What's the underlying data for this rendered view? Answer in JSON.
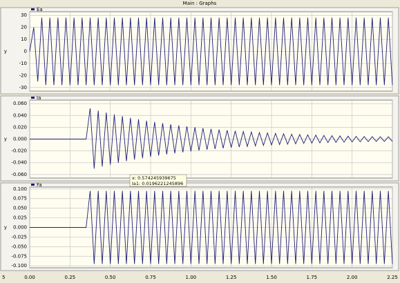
{
  "window_title": "Main : Graphs",
  "corner_label": "5",
  "tooltip": {
    "x_line": "x: 0.574245939675",
    "y_line": "Ia1: 0.0196221245896"
  },
  "chart_data": [
    {
      "type": "line",
      "ylabel": "y",
      "legend_position": "top-left",
      "grid": true,
      "xlim": [
        0,
        2.25
      ],
      "ylim": [
        -33,
        33
      ],
      "yticks": [
        30,
        20,
        10,
        0,
        -10,
        -20,
        -30
      ],
      "xticks": [
        0,
        0.25,
        0.5,
        0.75,
        1,
        1.25,
        1.5,
        1.75,
        2,
        2.25
      ],
      "x": [
        0,
        0.025,
        0.05,
        0.075,
        0.1,
        0.125,
        0.15,
        0.175,
        0.2,
        0.225,
        0.25,
        0.275,
        0.3,
        0.325,
        0.35,
        0.375,
        0.4,
        0.425,
        0.45,
        0.475,
        0.5,
        0.525,
        0.55,
        0.575,
        0.6,
        0.625,
        0.65,
        0.675,
        0.7,
        0.725,
        0.75,
        0.775,
        0.8,
        0.825,
        0.85,
        0.875,
        0.9,
        0.925,
        0.95,
        0.975,
        1,
        1.025,
        1.05,
        1.075,
        1.1,
        1.125,
        1.15,
        1.175,
        1.2,
        1.225,
        1.25,
        1.275,
        1.3,
        1.325,
        1.35,
        1.375,
        1.4,
        1.425,
        1.45,
        1.475,
        1.5,
        1.525,
        1.55,
        1.575,
        1.6,
        1.625,
        1.65,
        1.675,
        1.7,
        1.725,
        1.75,
        1.775,
        1.8,
        1.825,
        1.85,
        1.875,
        1.9,
        1.925,
        1.95,
        1.975,
        2,
        2.025,
        2.05,
        2.075,
        2.1,
        2.125,
        2.15,
        2.175,
        2.2,
        2.225,
        2.25
      ],
      "series": [
        {
          "name": "Ea",
          "color": "#1c1c78",
          "values": [
            0,
            20,
            -25,
            28,
            -28,
            28,
            -28,
            28,
            -28,
            28,
            -28,
            28,
            -28,
            28,
            -28,
            28,
            -28,
            28,
            -28,
            28,
            -28,
            28,
            -28,
            28,
            -28,
            28,
            -28,
            28,
            -28,
            28,
            -28,
            28,
            -28,
            28,
            -28,
            28,
            -28,
            28,
            -28,
            28,
            -28,
            28,
            -28,
            28,
            -28,
            28,
            -28,
            28,
            -28,
            28,
            -28,
            28,
            -28,
            28,
            -28,
            28,
            -28,
            28,
            -28,
            28,
            -28,
            28,
            -28,
            28,
            -28,
            28,
            -28,
            28,
            -28,
            28,
            -28,
            28,
            -28,
            28,
            -28,
            28,
            -28,
            28,
            -28,
            28,
            -28,
            28,
            -28,
            28,
            -28,
            28,
            -28,
            28,
            -28,
            28,
            -28
          ]
        }
      ]
    },
    {
      "type": "line",
      "ylabel": "y",
      "legend_position": "top-left",
      "grid": true,
      "xlim": [
        0,
        2.25
      ],
      "ylim": [
        -0.066,
        0.066
      ],
      "yticks": [
        {
          "value": 0.06,
          "label": "0.060"
        },
        {
          "value": 0.04,
          "label": "0.040"
        },
        {
          "value": 0.02,
          "label": "0.020"
        },
        {
          "value": 0,
          "label": "0.000"
        },
        {
          "value": -0.02,
          "label": "-0.020"
        },
        {
          "value": -0.04,
          "label": "-0.040"
        },
        {
          "value": -0.06,
          "label": "-0.060"
        }
      ],
      "xticks": [
        0,
        0.25,
        0.5,
        0.75,
        1,
        1.25,
        1.5,
        1.75,
        2,
        2.25
      ],
      "x": [
        0,
        0.025,
        0.05,
        0.075,
        0.1,
        0.125,
        0.15,
        0.175,
        0.2,
        0.225,
        0.25,
        0.275,
        0.3,
        0.325,
        0.35,
        0.375,
        0.4,
        0.425,
        0.45,
        0.475,
        0.5,
        0.525,
        0.55,
        0.575,
        0.6,
        0.625,
        0.65,
        0.675,
        0.7,
        0.725,
        0.75,
        0.775,
        0.8,
        0.825,
        0.85,
        0.875,
        0.9,
        0.925,
        0.95,
        0.975,
        1,
        1.025,
        1.05,
        1.075,
        1.1,
        1.125,
        1.15,
        1.175,
        1.2,
        1.225,
        1.25,
        1.275,
        1.3,
        1.325,
        1.35,
        1.375,
        1.4,
        1.425,
        1.45,
        1.475,
        1.5,
        1.525,
        1.55,
        1.575,
        1.6,
        1.625,
        1.65,
        1.675,
        1.7,
        1.725,
        1.75,
        1.775,
        1.8,
        1.825,
        1.85,
        1.875,
        1.9,
        1.925,
        1.95,
        1.975,
        2,
        2.025,
        2.05,
        2.075,
        2.1,
        2.125,
        2.15,
        2.175,
        2.2,
        2.225,
        2.25
      ],
      "series": [
        {
          "name": "Ia",
          "color": "#1c1c78",
          "values": [
            0,
            0,
            0,
            0,
            0,
            0,
            0,
            0,
            0,
            0,
            0,
            0,
            0,
            0,
            0,
            0.052,
            -0.0501,
            0.0483,
            -0.0466,
            0.0449,
            -0.0433,
            0.0417,
            -0.0402,
            0.0388,
            -0.0374,
            0.036,
            -0.0347,
            0.0335,
            -0.0323,
            0.0311,
            -0.03,
            0.0289,
            -0.0279,
            0.0269,
            -0.0259,
            0.025,
            -0.0241,
            0.0232,
            -0.0224,
            0.0216,
            -0.0208,
            0.02,
            -0.0193,
            0.0186,
            -0.0179,
            0.0173,
            -0.0167,
            0.0161,
            -0.0155,
            0.0149,
            -0.0144,
            0.0139,
            -0.0134,
            0.0129,
            -0.0124,
            0.012,
            -0.0116,
            0.0111,
            -0.0107,
            0.0104,
            -0.01,
            0.0096,
            -0.0093,
            0.009,
            -0.0086,
            0.0083,
            -0.008,
            0.0077,
            -0.0074,
            0.0072,
            -0.0069,
            0.0067,
            -0.0064,
            0.0062,
            -0.006,
            0.0058,
            -0.0056,
            0.0054,
            -0.0052,
            0.005,
            -0.0048,
            0.0047,
            -0.0045,
            0.0044,
            -0.0042,
            0.0041,
            -0.004,
            0.004,
            -0.004,
            0.004,
            -0.004
          ]
        }
      ]
    },
    {
      "type": "line",
      "ylabel": "y",
      "legend_position": "top-left",
      "grid": true,
      "xlim": [
        0,
        2.25
      ],
      "ylim": [
        -0.105,
        0.105
      ],
      "yticks": [
        {
          "value": 0.1,
          "label": "0.100"
        },
        {
          "value": 0.075,
          "label": "0.075"
        },
        {
          "value": 0.05,
          "label": "0.050"
        },
        {
          "value": 0.025,
          "label": "0.025"
        },
        {
          "value": 0,
          "label": "0.000"
        },
        {
          "value": -0.025,
          "label": "-0.025"
        },
        {
          "value": -0.05,
          "label": "-0.050"
        },
        {
          "value": -0.075,
          "label": "-0.075"
        },
        {
          "value": -0.1,
          "label": "-0.100"
        }
      ],
      "xticks": [
        {
          "value": 0,
          "label": "0.00"
        },
        {
          "value": 0.25,
          "label": "0.25"
        },
        {
          "value": 0.5,
          "label": "0.50"
        },
        {
          "value": 0.75,
          "label": "0.75"
        },
        {
          "value": 1,
          "label": "1.00"
        },
        {
          "value": 1.25,
          "label": "1.25"
        },
        {
          "value": 1.5,
          "label": "1.50"
        },
        {
          "value": 1.75,
          "label": "1.75"
        },
        {
          "value": 2,
          "label": "2.00"
        },
        {
          "value": 2.25,
          "label": "2.25"
        }
      ],
      "x": [
        0,
        0.025,
        0.05,
        0.075,
        0.1,
        0.125,
        0.15,
        0.175,
        0.2,
        0.225,
        0.25,
        0.275,
        0.3,
        0.325,
        0.35,
        0.375,
        0.4,
        0.425,
        0.45,
        0.475,
        0.5,
        0.525,
        0.55,
        0.575,
        0.6,
        0.625,
        0.65,
        0.675,
        0.7,
        0.725,
        0.75,
        0.775,
        0.8,
        0.825,
        0.85,
        0.875,
        0.9,
        0.925,
        0.95,
        0.975,
        1,
        1.025,
        1.05,
        1.075,
        1.1,
        1.125,
        1.15,
        1.175,
        1.2,
        1.225,
        1.25,
        1.275,
        1.3,
        1.325,
        1.35,
        1.375,
        1.4,
        1.425,
        1.45,
        1.475,
        1.5,
        1.525,
        1.55,
        1.575,
        1.6,
        1.625,
        1.65,
        1.675,
        1.7,
        1.725,
        1.75,
        1.775,
        1.8,
        1.825,
        1.85,
        1.875,
        1.9,
        1.925,
        1.95,
        1.975,
        2,
        2.025,
        2.05,
        2.075,
        2.1,
        2.125,
        2.15,
        2.175,
        2.2,
        2.225,
        2.25
      ],
      "series": [
        {
          "name": "Fa",
          "color": "#1c1c78",
          "values": [
            0,
            0,
            0,
            0,
            0,
            0,
            0,
            0,
            0,
            0,
            0,
            0,
            0,
            0,
            0,
            0.095,
            -0.095,
            0.095,
            -0.095,
            0.095,
            -0.095,
            0.095,
            -0.095,
            0.095,
            -0.095,
            0.095,
            -0.095,
            0.095,
            -0.095,
            0.095,
            -0.095,
            0.095,
            -0.095,
            0.095,
            -0.095,
            0.095,
            -0.095,
            0.095,
            -0.095,
            0.095,
            -0.095,
            0.095,
            -0.095,
            0.095,
            -0.095,
            0.095,
            -0.095,
            0.095,
            -0.095,
            0.095,
            -0.095,
            0.095,
            -0.095,
            0.095,
            -0.095,
            0.095,
            -0.095,
            0.095,
            -0.095,
            0.095,
            -0.095,
            0.095,
            -0.095,
            0.095,
            -0.095,
            0.095,
            -0.095,
            0.095,
            -0.095,
            0.095,
            -0.095,
            0.095,
            -0.095,
            0.095,
            -0.095,
            0.095,
            -0.095,
            0.095,
            -0.095,
            0.095,
            -0.095,
            0.095,
            -0.095,
            0.095,
            -0.095,
            0.095,
            -0.095,
            0.095,
            -0.095,
            0.095,
            -0.095
          ]
        }
      ]
    }
  ]
}
